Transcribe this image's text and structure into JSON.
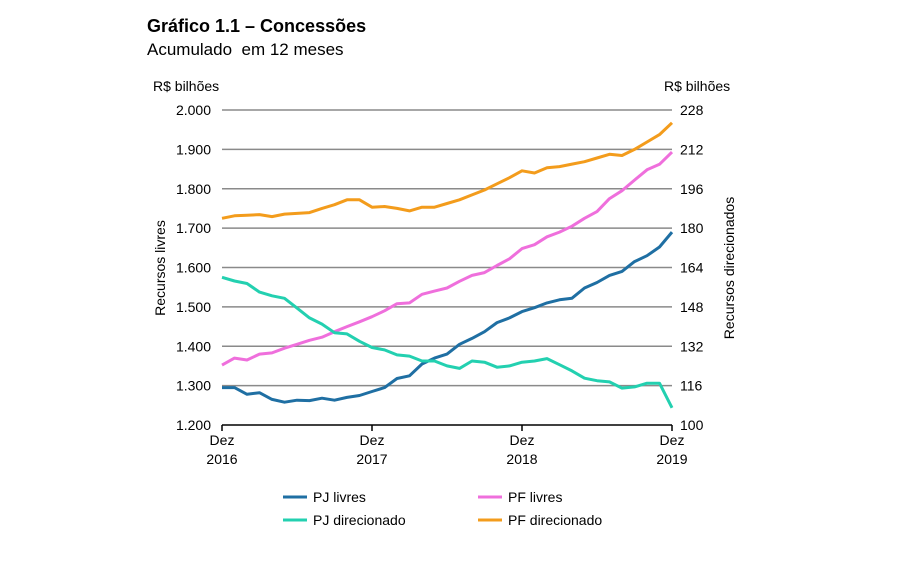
{
  "chart_data": {
    "type": "line",
    "title": "Gráfico 1.1 – Concessões",
    "subtitle": "Acumulado  em 12 meses",
    "y_left": {
      "unit": "R$ bilhões",
      "label": "Recursos livres",
      "range": [
        1200,
        2000
      ],
      "ticks": [
        "1.200",
        "1.300",
        "1.400",
        "1.500",
        "1.600",
        "1.700",
        "1.800",
        "1.900",
        "2.000"
      ]
    },
    "y_right": {
      "unit": "R$ bilhões",
      "label": "Recursos direcionados",
      "range": [
        100,
        228
      ],
      "ticks": [
        "100",
        "116",
        "132",
        "148",
        "164",
        "180",
        "196",
        "212",
        "228"
      ]
    },
    "x": {
      "start": "Dez 2016",
      "end": "Dez 2019",
      "periods": 37,
      "ticks": [
        {
          "month": "Dez",
          "year": "2016",
          "index": 0
        },
        {
          "month": "Dez",
          "year": "2017",
          "index": 12
        },
        {
          "month": "Dez",
          "year": "2018",
          "index": 24
        },
        {
          "month": "Dez",
          "year": "2019",
          "index": 36
        }
      ]
    },
    "grid": true,
    "legend_placement": "bottom",
    "series": [
      {
        "name": "PJ livres",
        "axis": "left",
        "color": "#1f6fa3",
        "values": [
          1295,
          1295,
          1278,
          1282,
          1265,
          1258,
          1263,
          1262,
          1268,
          1263,
          1270,
          1275,
          1285,
          1295,
          1318,
          1325,
          1355,
          1370,
          1380,
          1405,
          1420,
          1437,
          1460,
          1472,
          1488,
          1498,
          1510,
          1518,
          1522,
          1548,
          1562,
          1580,
          1590,
          1615,
          1630,
          1652,
          1690
        ]
      },
      {
        "name": "PF livres",
        "axis": "left",
        "color": "#ef6fdc",
        "values": [
          1352,
          1370,
          1365,
          1380,
          1383,
          1395,
          1405,
          1415,
          1423,
          1437,
          1450,
          1462,
          1475,
          1490,
          1508,
          1510,
          1532,
          1540,
          1548,
          1565,
          1580,
          1587,
          1605,
          1622,
          1648,
          1658,
          1678,
          1690,
          1705,
          1725,
          1742,
          1775,
          1795,
          1822,
          1848,
          1862,
          1893
        ]
      },
      {
        "name": "PJ direcionado",
        "axis": "right",
        "color": "#23d0b0",
        "values": [
          160,
          158.5,
          157.5,
          154,
          152.5,
          151.5,
          147.5,
          143.5,
          141,
          137.5,
          137,
          134,
          131.5,
          130.5,
          128.5,
          128,
          126,
          126,
          124,
          123,
          126,
          125.5,
          123.5,
          124,
          125.5,
          126,
          127,
          124.5,
          122,
          119,
          118,
          117.5,
          115,
          115.5,
          117,
          117,
          107
        ]
      },
      {
        "name": "PF direcionado",
        "axis": "right",
        "color": "#f39c1c",
        "values": [
          184,
          185,
          185.2,
          185.5,
          184.7,
          185.7,
          186,
          186.3,
          188,
          189.5,
          191.5,
          191.5,
          188.5,
          188.8,
          188,
          187,
          188.5,
          188.5,
          190,
          191.5,
          193.5,
          195.5,
          198,
          200.5,
          203.3,
          202.4,
          204.5,
          205,
          206,
          207,
          208.5,
          210,
          209.5,
          212,
          215,
          218,
          222.8
        ]
      }
    ]
  }
}
